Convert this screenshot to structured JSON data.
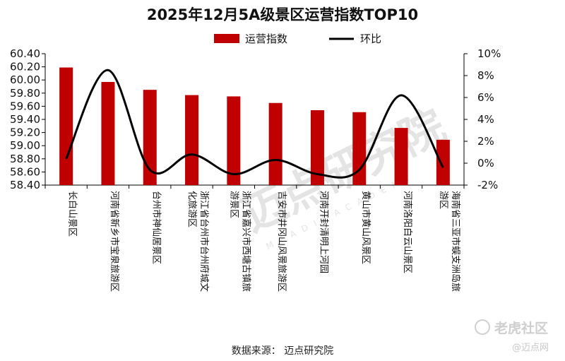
{
  "chart_data": {
    "type": "bar+line",
    "title": "2025年12月5A级景区运营指数TOP10",
    "legend": [
      {
        "name": "运营指数",
        "type": "bar",
        "color": "#c00000"
      },
      {
        "name": "环比",
        "type": "line",
        "color": "#000000"
      }
    ],
    "categories": [
      "长白山景区",
      "河南省新乡市宝泉旅游区",
      "台州市神仙居景区",
      "浙江省台州市台州府城文化旅游区",
      "浙江省嘉兴市西塘古镇旅游景区",
      "吉安市井冈山风景旅游区",
      "河南开封清明上河园",
      "黄山市黄山风景区",
      "河南洛阳白云山景区",
      "海南省三亚市蜈支洲岛旅游区"
    ],
    "category_label_lines": [
      [
        "长白山景区"
      ],
      [
        "河南省新乡市宝泉旅游区"
      ],
      [
        "台州市神仙居景区"
      ],
      [
        "化旅游区",
        "浙江省台州市台州府城文"
      ],
      [
        "游景区",
        "浙江省嘉兴市西塘古镇旅"
      ],
      [
        "吉安市井冈山风景旅游区"
      ],
      [
        "河南开封清明上河园"
      ],
      [
        "黄山市黄山风景区"
      ],
      [
        "河南洛阳白云山景区"
      ],
      [
        "游区",
        "海南省三亚市蜈支洲岛旅"
      ]
    ],
    "series": [
      {
        "name": "运营指数",
        "axis": "left",
        "values": [
          60.19,
          59.97,
          59.85,
          59.77,
          59.75,
          59.65,
          59.54,
          59.51,
          59.27,
          59.09
        ]
      },
      {
        "name": "环比",
        "axis": "right",
        "unit": "%",
        "values": [
          0.4,
          8.5,
          -0.6,
          0.8,
          -1.0,
          0.3,
          -1.0,
          -0.6,
          6.2,
          -0.4
        ]
      }
    ],
    "y_left": {
      "min": 58.4,
      "max": 60.4,
      "step": 0.2,
      "ticks": [
        "60.40",
        "60.20",
        "60.00",
        "59.80",
        "59.60",
        "59.40",
        "59.20",
        "59.00",
        "58.80",
        "58.60",
        "58.40"
      ]
    },
    "y_right": {
      "min": -2,
      "max": 10,
      "step": 2,
      "ticks": [
        "10%",
        "8%",
        "6%",
        "4%",
        "2%",
        "0%",
        "-2%"
      ]
    },
    "grid": false,
    "legend_position": "top-center"
  },
  "source": "数据来源：  迈点研究院",
  "watermark": {
    "brand_cn": "迈点研究院",
    "brand_en": "M E A D I N   A C A D E M Y",
    "community": "老虎社区",
    "site": "@迈点网"
  },
  "colors": {
    "bar": "#c00000",
    "line": "#000000",
    "axis": "#000000"
  }
}
